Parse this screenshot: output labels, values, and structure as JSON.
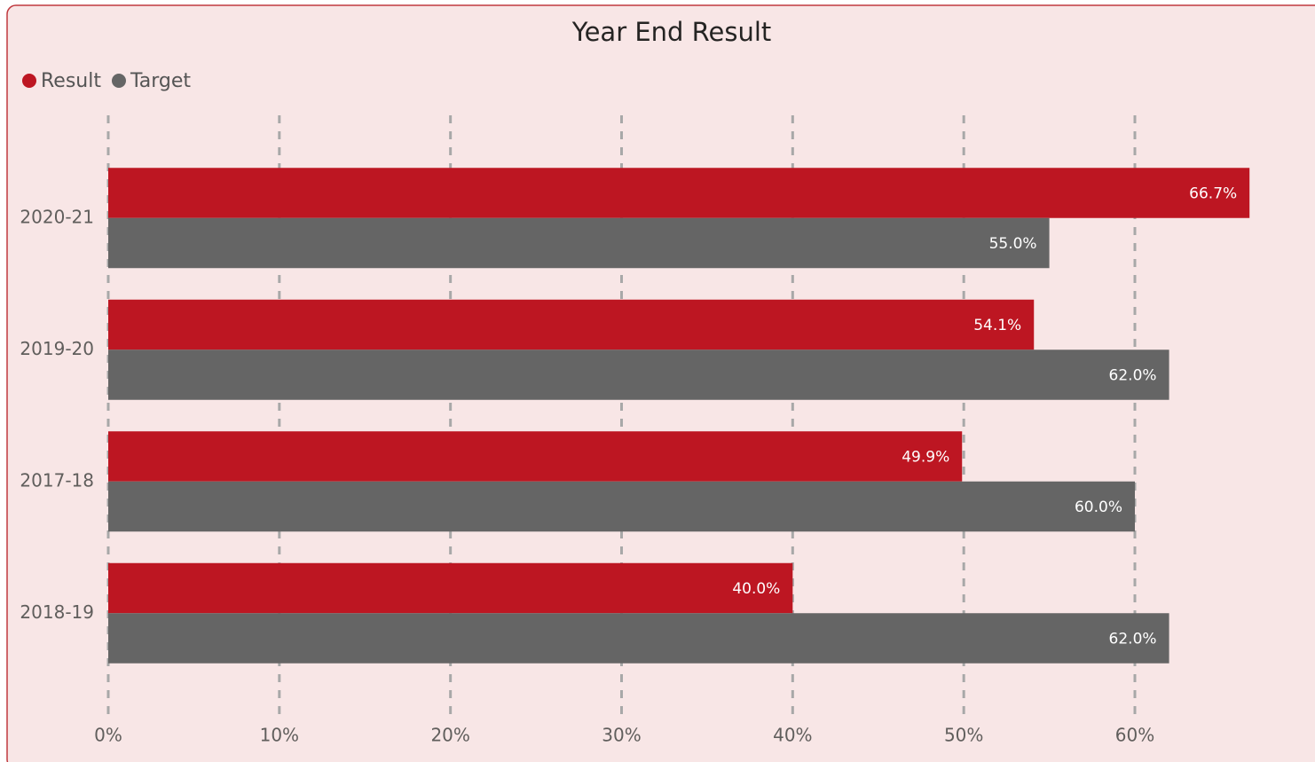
{
  "chart_data": {
    "type": "hbar",
    "title": "Year End Result",
    "categories": [
      "2020-21",
      "2019-20",
      "2017-18",
      "2018-19"
    ],
    "series": [
      {
        "name": "Result",
        "color": "#bd1622",
        "values": [
          66.7,
          54.1,
          49.9,
          40.0
        ],
        "value_labels": [
          "66.7%",
          "54.1%",
          "49.9%",
          "40.0%"
        ]
      },
      {
        "name": "Target",
        "color": "#656565",
        "values": [
          55.0,
          62.0,
          60.0,
          62.0
        ],
        "value_labels": [
          "55.0%",
          "62.0%",
          "60.0%",
          "62.0%"
        ]
      }
    ],
    "xlim": [
      0,
      69
    ],
    "xticks": [
      {
        "value": 0,
        "label": "0%"
      },
      {
        "value": 10,
        "label": "10%"
      },
      {
        "value": 20,
        "label": "20%"
      },
      {
        "value": 30,
        "label": "30%"
      },
      {
        "value": 40,
        "label": "40%"
      },
      {
        "value": 50,
        "label": "50%"
      },
      {
        "value": 60,
        "label": "60%"
      }
    ],
    "grid": true,
    "legend": "top-left"
  }
}
